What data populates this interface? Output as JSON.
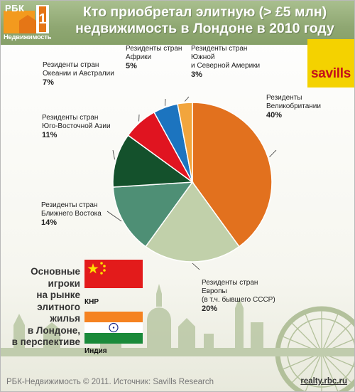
{
  "logo": {
    "brand": "РБК",
    "sub": "Недвижимость"
  },
  "title": {
    "line1": "Кто приобретал элитную (> £5 млн)",
    "line2": "недвижимость в Лондоне в 2010 году"
  },
  "badge": {
    "text": "savills"
  },
  "colors": {
    "header": "#98b07c",
    "savills_bg": "#f4d200",
    "savills_text": "#c40f1a"
  },
  "chart_data": {
    "type": "pie",
    "title": "Кто приобретал элитную (> £5 млн) недвижимость в Лондоне в 2010 году",
    "start_angle_deg": 0,
    "direction": "clockwise",
    "slices": [
      {
        "label_lines": [
          "Резиденты",
          "Великобритании"
        ],
        "value": 40,
        "pct_label": "40%",
        "color": "#e2711e"
      },
      {
        "label_lines": [
          "Резиденты стран",
          "Европы",
          "(в т.ч. бывшего СССР)"
        ],
        "value": 20,
        "pct_label": "20%",
        "color": "#c1d0aa"
      },
      {
        "label_lines": [
          "Резиденты стран",
          "Ближнего Востока"
        ],
        "value": 14,
        "pct_label": "14%",
        "color": "#4e8f75"
      },
      {
        "label_lines": [
          "Резиденты стран",
          "Юго-Восточной Азии"
        ],
        "value": 11,
        "pct_label": "11%",
        "color": "#14512c"
      },
      {
        "label_lines": [
          "Резиденты стран",
          "Океании и Австралии"
        ],
        "value": 7,
        "pct_label": "7%",
        "color": "#e01420"
      },
      {
        "label_lines": [
          "Резиденты стран",
          "Африки"
        ],
        "value": 5,
        "pct_label": "5%",
        "color": "#1c74bf"
      },
      {
        "label_lines": [
          "Резиденты стран",
          "Южной",
          "и Северной Америки"
        ],
        "value": 3,
        "pct_label": "3%",
        "color": "#f2a53d"
      }
    ]
  },
  "players": {
    "lines": [
      "Основные",
      "игроки",
      "на рынке",
      "элитного",
      "жилья",
      "в Лондоне,",
      "в перспективе"
    ],
    "china": "КНР",
    "india": "Индия"
  },
  "footer": {
    "left": "РБК-Недвижимость © 2011. Источник: Savills Research",
    "right": "realty.rbc.ru"
  }
}
